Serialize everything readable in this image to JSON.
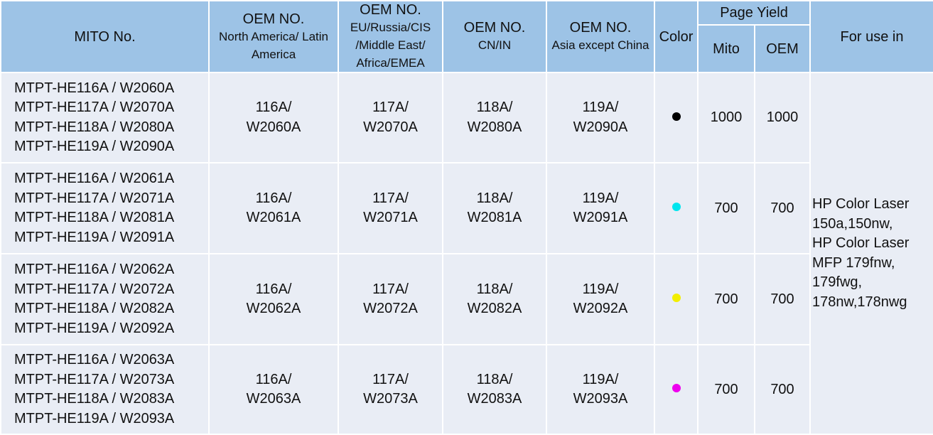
{
  "headers": {
    "mito": "MITO No.",
    "oem_na": {
      "title": "OEM NO.",
      "region": "North America/ Latin America"
    },
    "oem_eu": {
      "title": "OEM NO.",
      "region": "EU/Russia/CIS /Middle East/ Africa/EMEA"
    },
    "oem_cn": {
      "title": "OEM NO.",
      "region": "CN/IN"
    },
    "oem_asia": {
      "title": "OEM NO.",
      "region": "Asia except China"
    },
    "color": "Color",
    "page_yield": "Page Yield",
    "yield_mito": "Mito",
    "yield_oem": "OEM",
    "for_use": "For use in"
  },
  "rows": [
    {
      "mito": [
        "MTPT-HE116A / W2060A",
        "MTPT-HE117A / W2070A",
        "MTPT-HE118A / W2080A",
        "MTPT-HE119A / W2090A"
      ],
      "oem_na": [
        "116A/",
        "W2060A"
      ],
      "oem_eu": [
        "117A/",
        "W2070A"
      ],
      "oem_cn": [
        "118A/",
        "W2080A"
      ],
      "oem_asia": [
        "119A/",
        "W2090A"
      ],
      "color": {
        "name": "black",
        "hex": "#000000"
      },
      "yield_mito": "1000",
      "yield_oem": "1000"
    },
    {
      "mito": [
        "MTPT-HE116A / W2061A",
        "MTPT-HE117A / W2071A",
        "MTPT-HE118A / W2081A",
        "MTPT-HE119A / W2091A"
      ],
      "oem_na": [
        "116A/",
        "W2061A"
      ],
      "oem_eu": [
        "117A/",
        "W2071A"
      ],
      "oem_cn": [
        "118A/",
        "W2081A"
      ],
      "oem_asia": [
        "119A/",
        "W2091A"
      ],
      "color": {
        "name": "cyan",
        "hex": "#00e5ee"
      },
      "yield_mito": "700",
      "yield_oem": "700"
    },
    {
      "mito": [
        "MTPT-HE116A / W2062A",
        "MTPT-HE117A / W2072A",
        "MTPT-HE118A / W2082A",
        "MTPT-HE119A / W2092A"
      ],
      "oem_na": [
        "116A/",
        "W2062A"
      ],
      "oem_eu": [
        "117A/",
        "W2072A"
      ],
      "oem_cn": [
        "118A/",
        "W2082A"
      ],
      "oem_asia": [
        "119A/",
        "W2092A"
      ],
      "color": {
        "name": "yellow",
        "hex": "#f2ee00"
      },
      "yield_mito": "700",
      "yield_oem": "700"
    },
    {
      "mito": [
        "MTPT-HE116A / W2063A",
        "MTPT-HE117A / W2073A",
        "MTPT-HE118A / W2083A",
        "MTPT-HE119A / W2093A"
      ],
      "oem_na": [
        "116A/",
        "W2063A"
      ],
      "oem_eu": [
        "117A/",
        "W2073A"
      ],
      "oem_cn": [
        "118A/",
        "W2083A"
      ],
      "oem_asia": [
        "119A/",
        "W2093A"
      ],
      "color": {
        "name": "magenta",
        "hex": "#ee00ee"
      },
      "yield_mito": "700",
      "yield_oem": "700"
    }
  ],
  "for_use_lines": [
    "HP Color Laser",
    "150a,150nw,",
    "HP Color Laser",
    "MFP 179fnw,",
    "179fwg,",
    "178nw,178nwg"
  ]
}
